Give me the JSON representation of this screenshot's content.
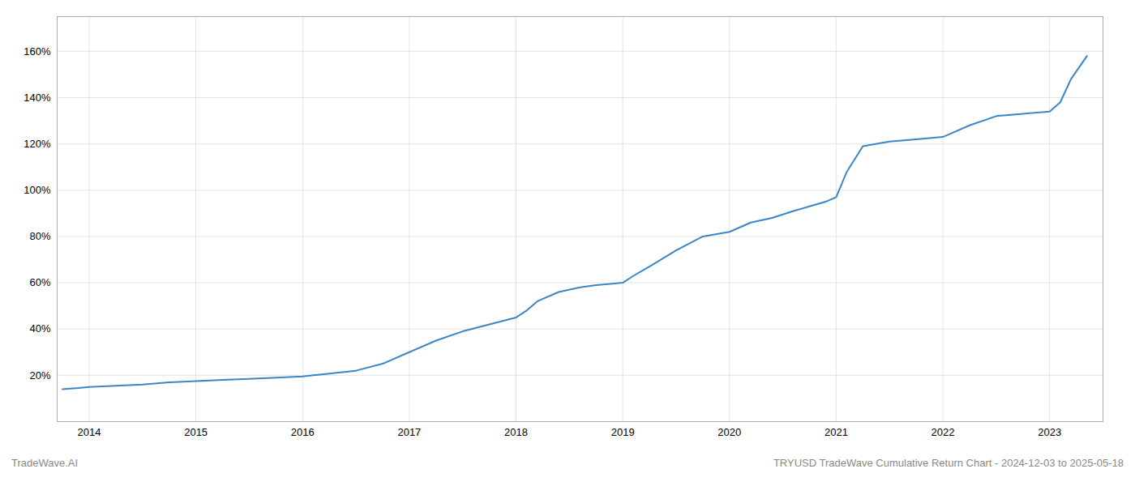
{
  "chart_data": {
    "type": "line",
    "title": "TRYUSD TradeWave Cumulative Return Chart - 2024-12-03 to 2025-05-18",
    "annotations": [
      "TradeWave.AI"
    ],
    "color": "#3a86c8",
    "grid": true,
    "x": [
      2013.75,
      2013.9,
      2014.0,
      2014.25,
      2014.5,
      2014.75,
      2015.0,
      2015.25,
      2015.5,
      2015.75,
      2016.0,
      2016.1,
      2016.2,
      2016.3,
      2016.5,
      2016.75,
      2017.0,
      2017.25,
      2017.5,
      2017.75,
      2018.0,
      2018.1,
      2018.2,
      2018.4,
      2018.6,
      2018.75,
      2019.0,
      2019.1,
      2019.25,
      2019.5,
      2019.75,
      2020.0,
      2020.1,
      2020.2,
      2020.4,
      2020.6,
      2020.75,
      2020.9,
      2021.0,
      2021.1,
      2021.25,
      2021.5,
      2021.75,
      2022.0,
      2022.1,
      2022.25,
      2022.5,
      2022.75,
      2023.0,
      2023.1,
      2023.2,
      2023.35
    ],
    "values": [
      14,
      14.5,
      15,
      15.5,
      16,
      17,
      17.5,
      18,
      18.5,
      19,
      19.5,
      20,
      20.5,
      21,
      22,
      25,
      30,
      35,
      39,
      42,
      45,
      48,
      52,
      56,
      58,
      59,
      60,
      63,
      67,
      74,
      80,
      82,
      84,
      86,
      88,
      91,
      93,
      95,
      97,
      108,
      119,
      121,
      122,
      123,
      125,
      128,
      132,
      133,
      134,
      138,
      148,
      158
    ],
    "xlim": [
      2013.7,
      2023.5
    ],
    "xticks": [
      2014,
      2015,
      2016,
      2017,
      2018,
      2019,
      2020,
      2021,
      2022,
      2023
    ],
    "ylim": [
      0,
      175
    ],
    "yticks": [
      {
        "value": 20,
        "label": "20%"
      },
      {
        "value": 40,
        "label": "40%"
      },
      {
        "value": 60,
        "label": "60%"
      },
      {
        "value": 80,
        "label": "80%"
      },
      {
        "value": 100,
        "label": "100%"
      },
      {
        "value": 120,
        "label": "120%"
      },
      {
        "value": 140,
        "label": "140%"
      },
      {
        "value": 160,
        "label": "160%"
      }
    ]
  }
}
